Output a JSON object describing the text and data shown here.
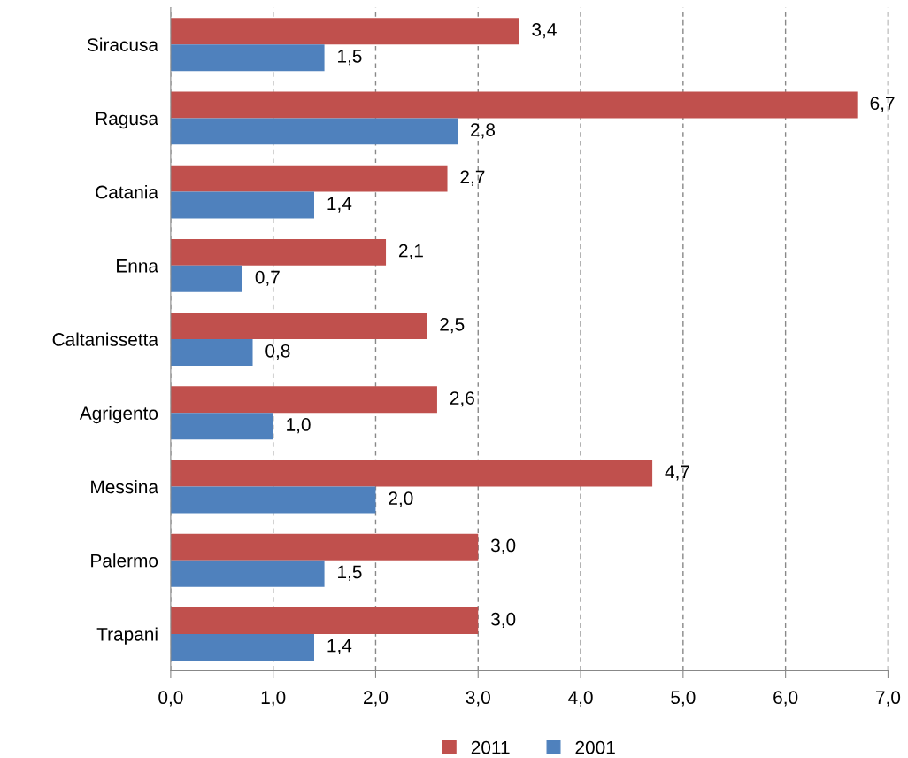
{
  "chart_data": {
    "type": "bar",
    "orientation": "horizontal",
    "categories": [
      "Siracusa",
      "Ragusa",
      "Catania",
      "Enna",
      "Caltanissetta",
      "Agrigento",
      "Messina",
      "Palermo",
      "Trapani"
    ],
    "series": [
      {
        "name": "2011",
        "color": "#c0504d",
        "values": [
          3.4,
          6.7,
          2.7,
          2.1,
          2.5,
          2.6,
          4.7,
          3.0,
          3.0
        ],
        "value_labels": [
          "3,4",
          "6,7",
          "2,7",
          "2,1",
          "2,5",
          "2,6",
          "4,7",
          "3,0",
          "3,0"
        ]
      },
      {
        "name": "2001",
        "color": "#4f81bd",
        "values": [
          1.5,
          2.8,
          1.4,
          0.7,
          0.8,
          1.0,
          2.0,
          1.5,
          1.4
        ],
        "value_labels": [
          "1,5",
          "2,8",
          "1,4",
          "0,7",
          "0,8",
          "1,0",
          "2,0",
          "1,5",
          "1,4"
        ]
      }
    ],
    "xlim": [
      0,
      7
    ],
    "xticks": [
      {
        "value": 0,
        "label": "0,0"
      },
      {
        "value": 1,
        "label": "1,0"
      },
      {
        "value": 2,
        "label": "2,0"
      },
      {
        "value": 3,
        "label": "3,0"
      },
      {
        "value": 4,
        "label": "4,0"
      },
      {
        "value": 5,
        "label": "5,0"
      },
      {
        "value": 6,
        "label": "6,0"
      },
      {
        "value": 7,
        "label": "7,0"
      }
    ],
    "grid": "x",
    "legend": "bottom"
  }
}
